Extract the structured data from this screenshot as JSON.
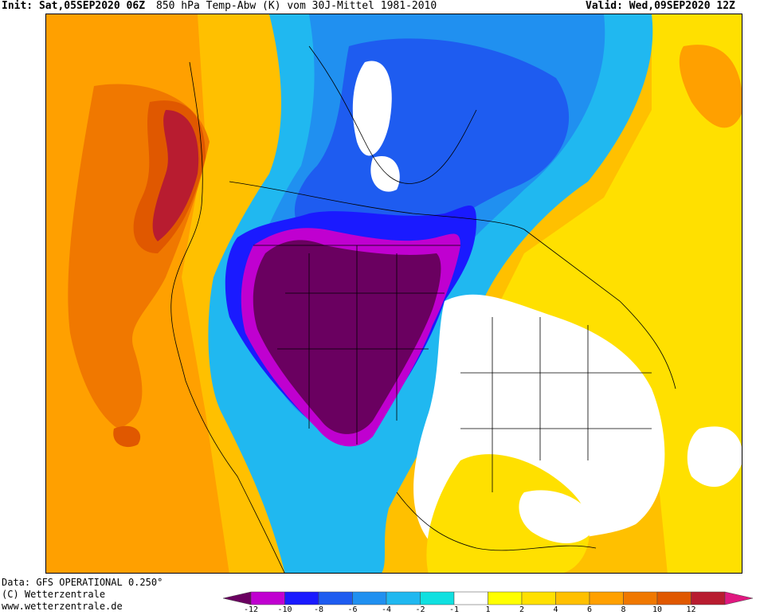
{
  "header": {
    "init_label": "Init:",
    "init_value": "Sat,05SEP2020 06Z",
    "field": "850 hPa Temp-Abw (K) vom 30J-Mittel 1981-2010",
    "valid_label": "Valid:",
    "valid_value": "Wed,09SEP2020 12Z"
  },
  "footer": {
    "data_source": "Data: GFS OPERATIONAL 0.250°",
    "copyright": "(C) Wetterzentrale",
    "website": "www.wetterzentrale.de"
  },
  "colorbar": {
    "colors": [
      "#6a0060",
      "#c000d0",
      "#1a1aff",
      "#1e5cf0",
      "#2090f0",
      "#20b8f0",
      "#10e0e0",
      "#ffffff",
      "#ffff00",
      "#ffe000",
      "#ffc000",
      "#ffa000",
      "#f07800",
      "#e05800",
      "#b81c30",
      "#e01880"
    ],
    "ticks": [
      "-12",
      "-10",
      "-8",
      "-6",
      "-4",
      "-2",
      "-1",
      "1",
      "2",
      "4",
      "6",
      "8",
      "10",
      "12"
    ]
  },
  "map": {
    "region": "North America",
    "features": [
      "cold-anomaly-core",
      "warm-anomaly-west-coast",
      "warm-anomaly-northeast",
      "coastlines",
      "state-borders"
    ]
  }
}
